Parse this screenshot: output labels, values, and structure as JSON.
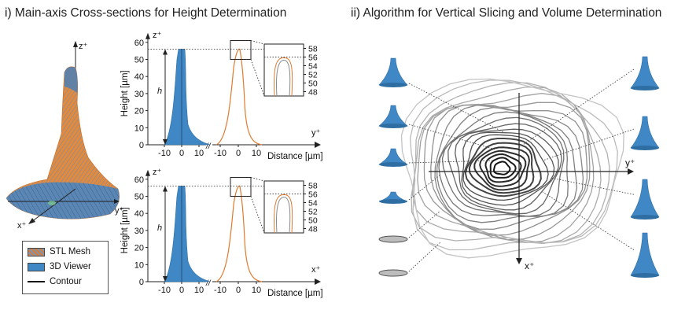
{
  "titles": {
    "left": "i) Main-axis Cross-sections for Height Determination",
    "right": "ii) Algorithm for Vertical Slicing and Volume Determination"
  },
  "legend": {
    "items": [
      {
        "label": "STL Mesh",
        "kind": "stl-mesh"
      },
      {
        "label": "3D Viewer",
        "kind": "3d-viewer"
      },
      {
        "label": "Contour",
        "kind": "contour-line"
      }
    ]
  },
  "axes_3d": {
    "z": "z⁺",
    "y": "y⁺",
    "x": "x⁺"
  },
  "colors": {
    "stl": "#e07a2e",
    "viewer": "#3f88c5",
    "contour": "#111111",
    "guide": "#555555"
  },
  "chart_data": [
    {
      "type": "area",
      "title": "",
      "axis_top_label": "z⁺",
      "axis_right_label": "y⁺",
      "xlabel": "Distance [µm]",
      "ylabel": "Height [µm]",
      "xticks_left": [
        "-10",
        "0",
        "10"
      ],
      "xticks_right": [
        "-10",
        "0",
        "10"
      ],
      "yticks": [
        "0",
        "10",
        "20",
        "30",
        "40",
        "50",
        "60"
      ],
      "ylim": [
        0,
        60
      ],
      "height_marker": "h",
      "height_value": 56,
      "inset_yticks": [
        "58",
        "56",
        "54",
        "52",
        "50",
        "48"
      ],
      "inset_ylim": [
        47,
        59
      ]
    },
    {
      "type": "area",
      "title": "",
      "axis_top_label": "z⁺",
      "axis_right_label": "x⁺",
      "xlabel": "Distance [µm]",
      "ylabel": "Height [µm]",
      "xticks_left": [
        "-10",
        "0",
        "10"
      ],
      "xticks_right": [
        "-10",
        "0",
        "10"
      ],
      "yticks": [
        "0",
        "10",
        "20",
        "30",
        "40",
        "50",
        "60"
      ],
      "ylim": [
        0,
        60
      ],
      "height_marker": "h",
      "height_value": 56,
      "inset_yticks": [
        "58",
        "56",
        "54",
        "52",
        "50",
        "48"
      ],
      "inset_ylim": [
        47,
        59
      ]
    }
  ],
  "slice_panel": {
    "axis_y_label": "y⁺",
    "axis_x_label": "x⁺",
    "contour_count": 22
  }
}
